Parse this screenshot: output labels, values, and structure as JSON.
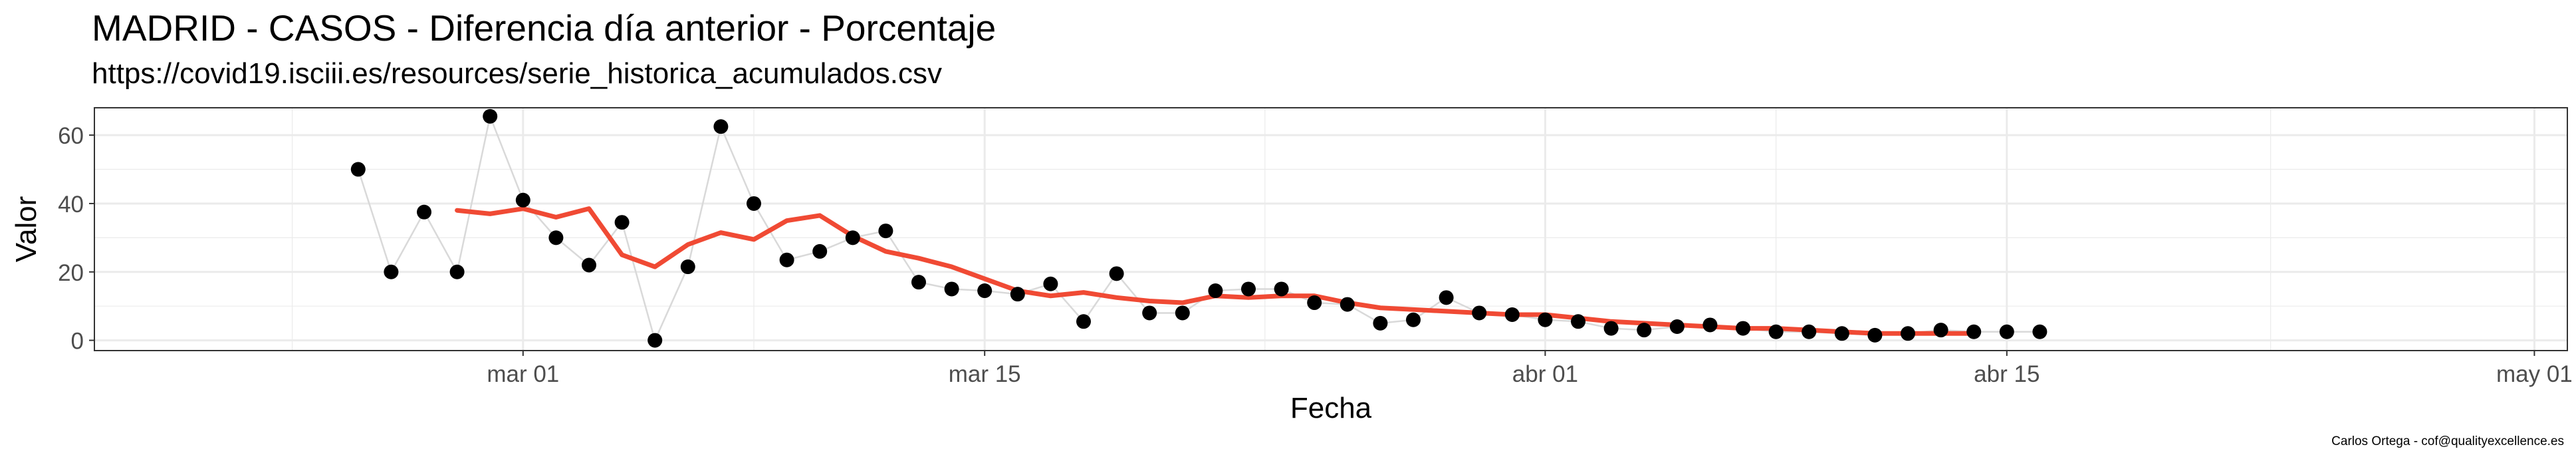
{
  "chart_data": {
    "type": "line",
    "title": "MADRID - CASOS - Diferencia día anterior - Porcentaje",
    "subtitle": "https://covid19.isciii.es/resources/serie_historica_acumulados.csv",
    "xlabel": "Fecha",
    "ylabel": "Valor",
    "caption": "Carlos Ortega - cof@qualityexcellence.es",
    "grid": true,
    "x_ticks": [
      {
        "date": "2020-03-01",
        "label": "mar 01"
      },
      {
        "date": "2020-03-15",
        "label": "mar 15"
      },
      {
        "date": "2020-04-01",
        "label": "abr 01"
      },
      {
        "date": "2020-04-15",
        "label": "abr 15"
      },
      {
        "date": "2020-05-01",
        "label": "may 01"
      }
    ],
    "xlim": [
      "2020-02-17",
      "2020-05-02"
    ],
    "y_ticks": [
      0,
      20,
      40,
      60
    ],
    "ylim": [
      -3,
      68
    ],
    "colors": {
      "points": "#000000",
      "connector": "#d9d9d9",
      "trend": "#f04a34",
      "grid": "#ebebeb",
      "panel_border": "#333333"
    },
    "series": [
      {
        "kind": "points",
        "x": [
          "2020-02-25",
          "2020-02-26",
          "2020-02-27",
          "2020-02-28",
          "2020-02-29",
          "2020-03-01",
          "2020-03-02",
          "2020-03-03",
          "2020-03-04",
          "2020-03-05",
          "2020-03-06",
          "2020-03-07",
          "2020-03-08",
          "2020-03-09",
          "2020-03-10",
          "2020-03-11",
          "2020-03-12",
          "2020-03-13",
          "2020-03-14",
          "2020-03-15",
          "2020-03-16",
          "2020-03-17",
          "2020-03-18",
          "2020-03-19",
          "2020-03-20",
          "2020-03-21",
          "2020-03-22",
          "2020-03-23",
          "2020-03-24",
          "2020-03-25",
          "2020-03-26",
          "2020-03-27",
          "2020-03-28",
          "2020-03-29",
          "2020-03-30",
          "2020-03-31",
          "2020-04-01",
          "2020-04-02",
          "2020-04-03",
          "2020-04-04",
          "2020-04-05",
          "2020-04-06",
          "2020-04-07",
          "2020-04-08",
          "2020-04-09",
          "2020-04-10",
          "2020-04-11",
          "2020-04-12",
          "2020-04-13",
          "2020-04-14",
          "2020-04-15",
          "2020-04-16"
        ],
        "y": [
          50,
          20,
          37.5,
          20,
          65.5,
          41,
          30,
          22,
          34.5,
          0,
          21.5,
          62.5,
          40,
          23.5,
          26,
          30,
          32,
          17,
          15,
          14.5,
          13.5,
          16.5,
          5.5,
          19.5,
          8,
          8,
          14.5,
          15,
          15,
          11,
          10.5,
          5,
          6,
          12.5,
          8,
          7.5,
          6,
          5.5,
          3.5,
          3,
          4,
          4.5,
          3.5,
          2.5,
          2.5,
          2,
          1.5,
          2,
          3,
          2.5,
          2.5,
          2.5
        ]
      },
      {
        "kind": "trend",
        "x": [
          "2020-02-28",
          "2020-02-29",
          "2020-03-01",
          "2020-03-02",
          "2020-03-03",
          "2020-03-04",
          "2020-03-05",
          "2020-03-06",
          "2020-03-07",
          "2020-03-08",
          "2020-03-09",
          "2020-03-10",
          "2020-03-11",
          "2020-03-12",
          "2020-03-13",
          "2020-03-14",
          "2020-03-15",
          "2020-03-16",
          "2020-03-17",
          "2020-03-18",
          "2020-03-19",
          "2020-03-20",
          "2020-03-21",
          "2020-03-22",
          "2020-03-23",
          "2020-03-24",
          "2020-03-25",
          "2020-03-26",
          "2020-03-27",
          "2020-03-28",
          "2020-03-29",
          "2020-03-30",
          "2020-03-31",
          "2020-04-01",
          "2020-04-02",
          "2020-04-03",
          "2020-04-04",
          "2020-04-05",
          "2020-04-06",
          "2020-04-07",
          "2020-04-08",
          "2020-04-09",
          "2020-04-10",
          "2020-04-11",
          "2020-04-12",
          "2020-04-13",
          "2020-04-14"
        ],
        "y": [
          38,
          37,
          38.5,
          36,
          38.5,
          25,
          21.5,
          28,
          31.5,
          29.5,
          35,
          36.5,
          30.5,
          26,
          24,
          21.5,
          18,
          14.5,
          13,
          14,
          12.5,
          11.5,
          11,
          13,
          12.5,
          13,
          13,
          11,
          9.5,
          9,
          8.5,
          8,
          7.5,
          7.5,
          6.5,
          5.5,
          5,
          4.5,
          4,
          3.5,
          3.5,
          3,
          2.5,
          2,
          2,
          2,
          2
        ]
      }
    ]
  }
}
